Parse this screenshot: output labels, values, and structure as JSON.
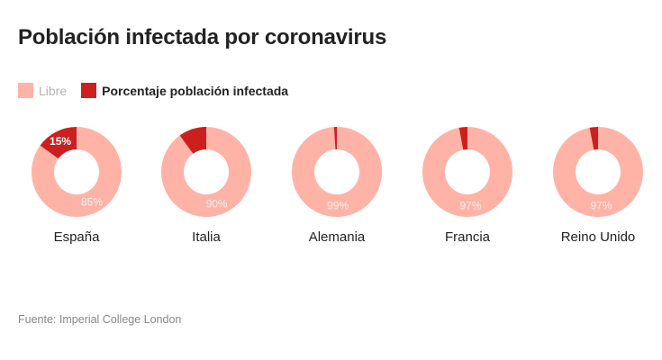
{
  "chart_data": {
    "type": "pie",
    "title": "Población infectada por coronavirus",
    "legend": [
      {
        "name": "Libre",
        "color": "#ffb3a7"
      },
      {
        "name": "Porcentaje población infectada",
        "color": "#cc1f1f"
      }
    ],
    "legend_placement": "top-left",
    "charts": [
      {
        "category": "España",
        "free": 85,
        "infected": 15,
        "free_label": "85%",
        "infected_label": "15%"
      },
      {
        "category": "Italia",
        "free": 90,
        "infected": 10,
        "free_label": "90%",
        "infected_label": ""
      },
      {
        "category": "Alemania",
        "free": 99,
        "infected": 1,
        "free_label": "99%",
        "infected_label": ""
      },
      {
        "category": "Francia",
        "free": 97,
        "infected": 3,
        "free_label": "97%",
        "infected_label": ""
      },
      {
        "category": "Reino Unido",
        "free": 97,
        "infected": 3,
        "free_label": "97%",
        "infected_label": ""
      }
    ],
    "source": "Fuente: Imperial College London"
  }
}
